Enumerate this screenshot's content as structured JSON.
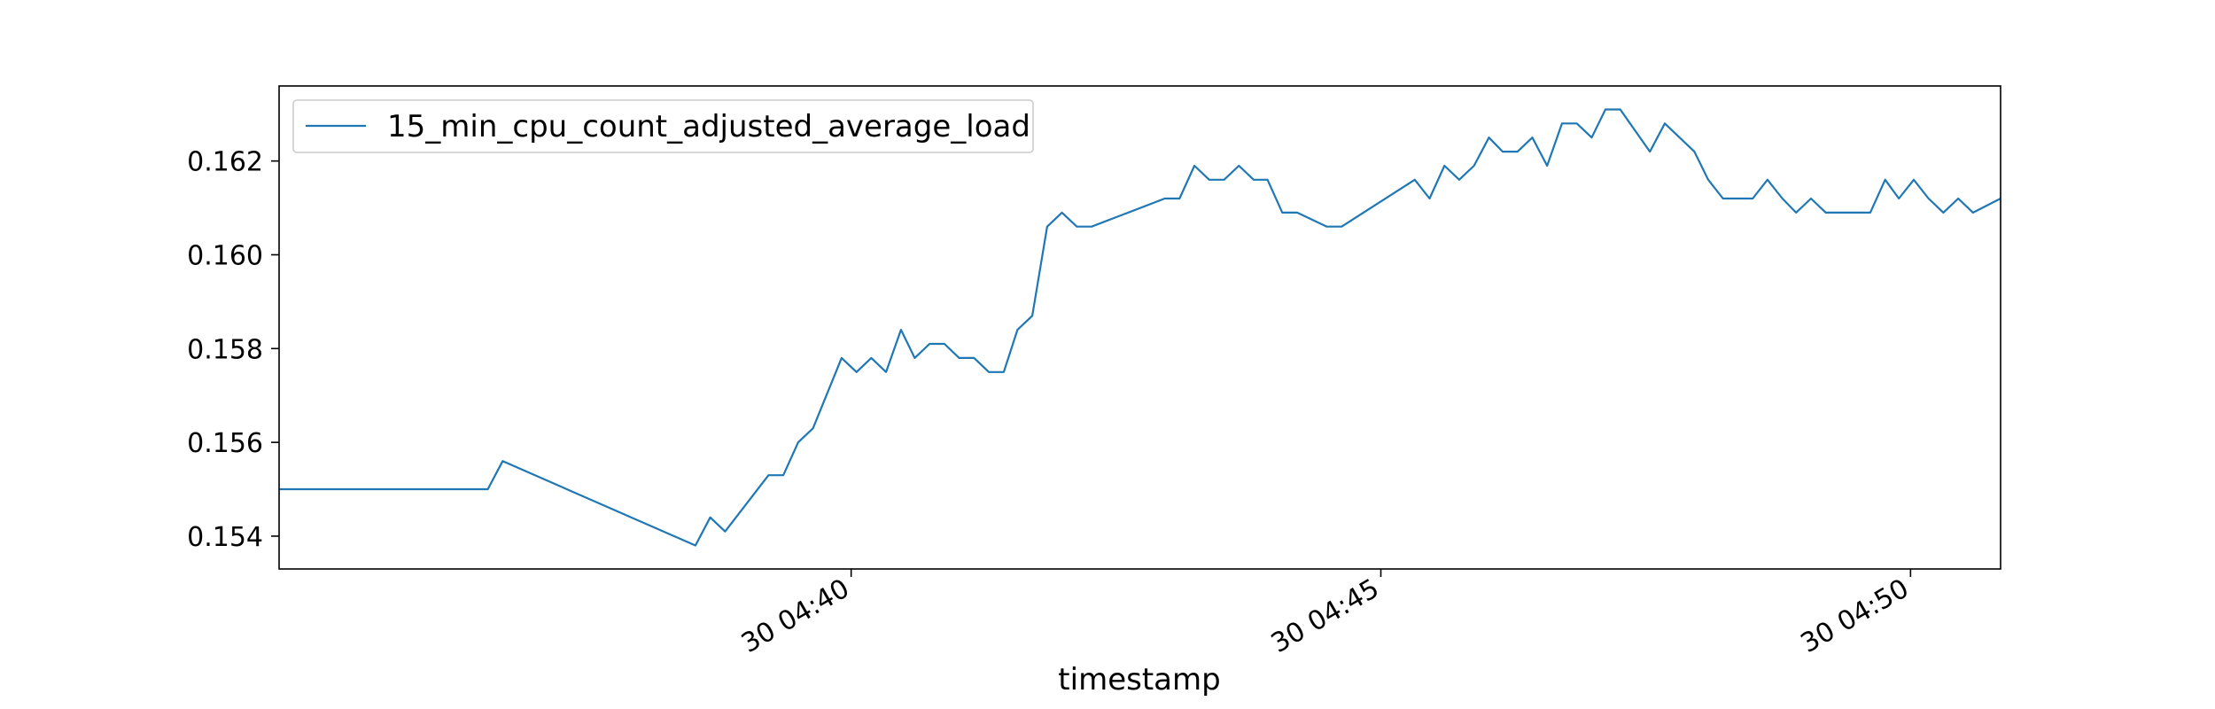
{
  "chart_data": {
    "type": "line",
    "title": "",
    "xlabel": "timestamp",
    "ylabel": "",
    "x_unit": "minutes",
    "x_range": [
      34.6,
      50.85
    ],
    "ylim": [
      0.1533,
      0.1636
    ],
    "grid": false,
    "legend_placement": "top-left",
    "y_ticks": [
      {
        "value": 0.154,
        "label": "0.154"
      },
      {
        "value": 0.156,
        "label": "0.156"
      },
      {
        "value": 0.158,
        "label": "0.158"
      },
      {
        "value": 0.16,
        "label": "0.160"
      },
      {
        "value": 0.162,
        "label": "0.162"
      }
    ],
    "x_ticks": [
      {
        "value": 40,
        "label": "30 04:40"
      },
      {
        "value": 45,
        "label": "30 04:45"
      },
      {
        "value": 50,
        "label": "30 04:50"
      }
    ],
    "series": [
      {
        "name": "15_min_cpu_count_adjusted_average_load",
        "color": "#1f77b4",
        "x": [
          34.6,
          36.57,
          36.71,
          38.53,
          38.67,
          38.81,
          39.22,
          39.36,
          39.5,
          39.64,
          39.91,
          40.05,
          40.19,
          40.33,
          40.47,
          40.6,
          40.74,
          40.88,
          41.02,
          41.16,
          41.3,
          41.44,
          41.57,
          41.71,
          41.85,
          41.99,
          42.13,
          42.27,
          42.96,
          43.1,
          43.24,
          43.38,
          43.52,
          43.66,
          43.8,
          43.93,
          44.07,
          44.21,
          44.49,
          44.63,
          45.32,
          45.46,
          45.6,
          45.74,
          45.88,
          46.02,
          46.15,
          46.29,
          46.43,
          46.57,
          46.71,
          46.85,
          46.99,
          47.12,
          47.26,
          47.54,
          47.68,
          47.82,
          47.96,
          48.09,
          48.23,
          48.51,
          48.65,
          48.79,
          48.92,
          49.06,
          49.2,
          49.34,
          49.62,
          49.76,
          49.89,
          50.03,
          50.17,
          50.31,
          50.45,
          50.59,
          50.85
        ],
        "y": [
          0.155,
          0.155,
          0.1556,
          0.1538,
          0.1544,
          0.1541,
          0.1553,
          0.1553,
          0.156,
          0.1563,
          0.1578,
          0.1575,
          0.1578,
          0.1575,
          0.1584,
          0.1578,
          0.1581,
          0.1581,
          0.1578,
          0.1578,
          0.1575,
          0.1575,
          0.1584,
          0.1587,
          0.1606,
          0.1609,
          0.1606,
          0.1606,
          0.1612,
          0.1612,
          0.1619,
          0.1616,
          0.1616,
          0.1619,
          0.1616,
          0.1616,
          0.1609,
          0.1609,
          0.1606,
          0.1606,
          0.1616,
          0.1612,
          0.1619,
          0.1616,
          0.1619,
          0.1625,
          0.1622,
          0.1622,
          0.1625,
          0.1619,
          0.1628,
          0.1628,
          0.1625,
          0.1631,
          0.1631,
          0.1622,
          0.1628,
          0.1625,
          0.1622,
          0.1616,
          0.1612,
          0.1612,
          0.1616,
          0.1612,
          0.1609,
          0.1612,
          0.1609,
          0.1609,
          0.1609,
          0.1616,
          0.1612,
          0.1616,
          0.1612,
          0.1609,
          0.1612,
          0.1609,
          0.1612
        ]
      }
    ]
  }
}
